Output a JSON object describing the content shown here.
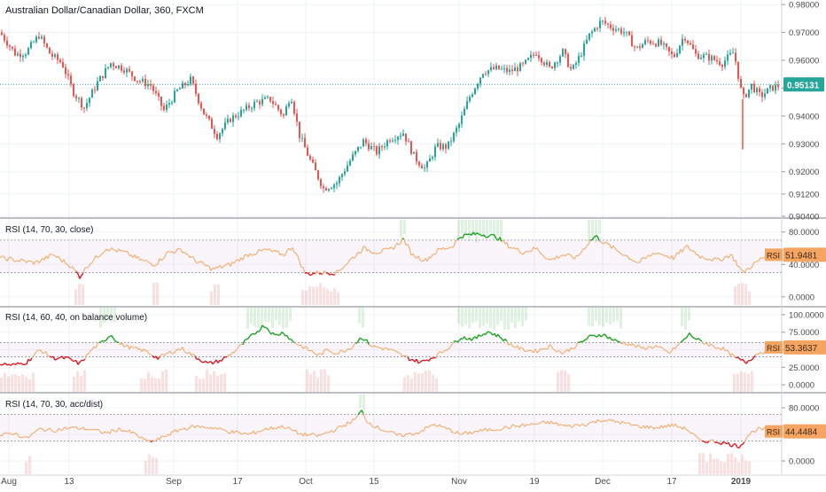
{
  "chart_data": [
    {
      "type": "candlestick",
      "title": "Australian Dollar/Canadian Dollar, 360, FXCM",
      "ylim": [
        0.904,
        0.981
      ],
      "yticks": [
        "0.98000",
        "0.97000",
        "0.96000",
        "0.95000",
        "0.94000",
        "0.93000",
        "0.92000",
        "0.91200",
        "0.90400"
      ],
      "yticks_values": [
        0.98,
        0.97,
        0.96,
        0.95,
        0.94,
        0.93,
        0.92,
        0.912,
        0.904
      ],
      "last_value": "0.95131",
      "last_value_num": 0.95131,
      "anchors": [
        [
          0,
          0.97
        ],
        [
          18,
          0.962
        ],
        [
          30,
          0.963
        ],
        [
          44,
          0.969
        ],
        [
          57,
          0.962
        ],
        [
          70,
          0.959
        ],
        [
          82,
          0.949
        ],
        [
          95,
          0.943
        ],
        [
          110,
          0.952
        ],
        [
          125,
          0.959
        ],
        [
          140,
          0.957
        ],
        [
          155,
          0.953
        ],
        [
          170,
          0.951
        ],
        [
          185,
          0.942
        ],
        [
          200,
          0.949
        ],
        [
          215,
          0.953
        ],
        [
          230,
          0.941
        ],
        [
          245,
          0.933
        ],
        [
          260,
          0.939
        ],
        [
          275,
          0.942
        ],
        [
          290,
          0.945
        ],
        [
          305,
          0.946
        ],
        [
          320,
          0.94
        ],
        [
          328,
          0.948
        ],
        [
          338,
          0.933
        ],
        [
          350,
          0.924
        ],
        [
          365,
          0.914
        ],
        [
          380,
          0.916
        ],
        [
          395,
          0.924
        ],
        [
          410,
          0.931
        ],
        [
          425,
          0.927
        ],
        [
          440,
          0.932
        ],
        [
          455,
          0.934
        ],
        [
          468,
          0.925
        ],
        [
          480,
          0.921
        ],
        [
          492,
          0.929
        ],
        [
          505,
          0.929
        ],
        [
          518,
          0.937
        ],
        [
          530,
          0.947
        ],
        [
          545,
          0.956
        ],
        [
          560,
          0.957
        ],
        [
          575,
          0.956
        ],
        [
          590,
          0.958
        ],
        [
          605,
          0.963
        ],
        [
          620,
          0.957
        ],
        [
          635,
          0.963
        ],
        [
          645,
          0.956
        ],
        [
          655,
          0.962
        ],
        [
          665,
          0.969
        ],
        [
          678,
          0.974
        ],
        [
          690,
          0.972
        ],
        [
          705,
          0.97
        ],
        [
          718,
          0.964
        ],
        [
          730,
          0.967
        ],
        [
          745,
          0.966
        ],
        [
          760,
          0.961
        ],
        [
          772,
          0.969
        ],
        [
          785,
          0.962
        ],
        [
          800,
          0.961
        ],
        [
          815,
          0.959
        ],
        [
          828,
          0.963
        ],
        [
          838,
          0.946
        ],
        [
          848,
          0.951
        ],
        [
          858,
          0.947
        ],
        [
          870,
          0.95
        ],
        [
          880,
          0.951
        ]
      ],
      "spike": {
        "x": 838,
        "low": 0.928
      }
    },
    {
      "type": "line",
      "title": "RSI (14, 70, 30, close)",
      "ylim": [
        -10,
        95
      ],
      "yticks": [
        "80.0000",
        "40.0000",
        "0.0000"
      ],
      "yticks_values": [
        80,
        40,
        0
      ],
      "upper": 70,
      "lower": 30,
      "tag": "RSI",
      "last_value": "51.9481",
      "last_value_num": 51.9481,
      "anchors": [
        [
          0,
          48
        ],
        [
          20,
          45
        ],
        [
          40,
          42
        ],
        [
          60,
          52
        ],
        [
          80,
          38
        ],
        [
          90,
          25
        ],
        [
          100,
          40
        ],
        [
          120,
          60
        ],
        [
          140,
          55
        ],
        [
          160,
          45
        ],
        [
          175,
          40
        ],
        [
          190,
          55
        ],
        [
          205,
          58
        ],
        [
          220,
          45
        ],
        [
          240,
          34
        ],
        [
          260,
          40
        ],
        [
          280,
          52
        ],
        [
          300,
          58
        ],
        [
          320,
          52
        ],
        [
          330,
          62
        ],
        [
          345,
          28
        ],
        [
          360,
          30
        ],
        [
          380,
          30
        ],
        [
          395,
          45
        ],
        [
          410,
          60
        ],
        [
          425,
          55
        ],
        [
          440,
          58
        ],
        [
          450,
          66
        ],
        [
          455,
          72
        ],
        [
          465,
          52
        ],
        [
          480,
          45
        ],
        [
          495,
          58
        ],
        [
          510,
          62
        ],
        [
          520,
          75
        ],
        [
          540,
          78
        ],
        [
          560,
          74
        ],
        [
          575,
          62
        ],
        [
          590,
          55
        ],
        [
          605,
          60
        ],
        [
          620,
          45
        ],
        [
          635,
          52
        ],
        [
          650,
          48
        ],
        [
          665,
          68
        ],
        [
          672,
          75
        ],
        [
          680,
          68
        ],
        [
          700,
          55
        ],
        [
          720,
          42
        ],
        [
          740,
          55
        ],
        [
          760,
          48
        ],
        [
          775,
          62
        ],
        [
          790,
          50
        ],
        [
          810,
          45
        ],
        [
          825,
          52
        ],
        [
          838,
          30
        ],
        [
          848,
          38
        ],
        [
          860,
          48
        ],
        [
          875,
          52
        ],
        [
          880,
          52
        ]
      ],
      "shade_down": [
        [
          84,
          96
        ],
        [
          172,
          178
        ],
        [
          237,
          246
        ],
        [
          340,
          382
        ],
        [
          828,
          848
        ]
      ],
      "shade_up": [
        [
          451,
          456
        ],
        [
          516,
          565
        ],
        [
          663,
          678
        ]
      ]
    },
    {
      "type": "line",
      "title": "RSI (14, 60, 40, on balance volume)",
      "ylim": [
        -10,
        110
      ],
      "yticks": [
        "100.0000",
        "75.0000",
        "50.0000",
        "25.0000",
        "0.0000"
      ],
      "yticks_values": [
        100,
        75,
        50,
        25,
        0
      ],
      "upper": 60,
      "lower": 40,
      "tag": "RSI",
      "last_value": "53.3637",
      "last_value_num": 53.3637,
      "anchors": [
        [
          0,
          30
        ],
        [
          15,
          28
        ],
        [
          30,
          32
        ],
        [
          45,
          50
        ],
        [
          60,
          38
        ],
        [
          75,
          38
        ],
        [
          90,
          30
        ],
        [
          105,
          52
        ],
        [
          115,
          60
        ],
        [
          125,
          72
        ],
        [
          135,
          58
        ],
        [
          150,
          52
        ],
        [
          165,
          48
        ],
        [
          178,
          38
        ],
        [
          190,
          45
        ],
        [
          205,
          52
        ],
        [
          220,
          40
        ],
        [
          235,
          30
        ],
        [
          250,
          35
        ],
        [
          265,
          48
        ],
        [
          280,
          65
        ],
        [
          298,
          85
        ],
        [
          310,
          70
        ],
        [
          320,
          75
        ],
        [
          330,
          62
        ],
        [
          345,
          52
        ],
        [
          360,
          42
        ],
        [
          370,
          50
        ],
        [
          380,
          45
        ],
        [
          395,
          52
        ],
        [
          408,
          68
        ],
        [
          420,
          55
        ],
        [
          440,
          50
        ],
        [
          460,
          38
        ],
        [
          475,
          32
        ],
        [
          490,
          40
        ],
        [
          505,
          52
        ],
        [
          520,
          68
        ],
        [
          535,
          65
        ],
        [
          550,
          76
        ],
        [
          565,
          68
        ],
        [
          575,
          58
        ],
        [
          590,
          50
        ],
        [
          605,
          48
        ],
        [
          620,
          55
        ],
        [
          635,
          45
        ],
        [
          645,
          52
        ],
        [
          665,
          68
        ],
        [
          680,
          72
        ],
        [
          695,
          62
        ],
        [
          710,
          58
        ],
        [
          725,
          52
        ],
        [
          740,
          55
        ],
        [
          755,
          45
        ],
        [
          770,
          62
        ],
        [
          778,
          72
        ],
        [
          790,
          62
        ],
        [
          805,
          55
        ],
        [
          815,
          52
        ],
        [
          830,
          38
        ],
        [
          842,
          32
        ],
        [
          855,
          45
        ],
        [
          868,
          50
        ],
        [
          880,
          53
        ]
      ],
      "shade_down": [
        [
          0,
          38
        ],
        [
          82,
          98
        ],
        [
          158,
          190
        ],
        [
          220,
          255
        ],
        [
          345,
          372
        ],
        [
          455,
          495
        ],
        [
          628,
          642
        ],
        [
          827,
          850
        ]
      ],
      "shade_up": [
        [
          112,
          132
        ],
        [
          278,
          330
        ],
        [
          404,
          410
        ],
        [
          516,
          595
        ],
        [
          663,
          700
        ],
        [
          768,
          780
        ]
      ]
    },
    {
      "type": "line",
      "title": "RSI (14, 70, 30, acc/dist)",
      "ylim": [
        -20,
        100
      ],
      "yticks": [
        "80.0000",
        "40.0000",
        "0.0000"
      ],
      "yticks_values": [
        80,
        40,
        0
      ],
      "upper": 70,
      "lower": 30,
      "tag": "RSI",
      "last_value": "44.4484",
      "last_value_num": 44.4484,
      "anchors": [
        [
          0,
          38
        ],
        [
          15,
          42
        ],
        [
          30,
          34
        ],
        [
          45,
          48
        ],
        [
          60,
          46
        ],
        [
          80,
          50
        ],
        [
          100,
          48
        ],
        [
          120,
          42
        ],
        [
          135,
          48
        ],
        [
          150,
          42
        ],
        [
          165,
          30
        ],
        [
          175,
          30
        ],
        [
          190,
          40
        ],
        [
          205,
          48
        ],
        [
          220,
          52
        ],
        [
          240,
          50
        ],
        [
          260,
          44
        ],
        [
          280,
          40
        ],
        [
          300,
          48
        ],
        [
          320,
          52
        ],
        [
          340,
          40
        ],
        [
          360,
          38
        ],
        [
          380,
          48
        ],
        [
          400,
          62
        ],
        [
          408,
          75
        ],
        [
          415,
          58
        ],
        [
          430,
          48
        ],
        [
          450,
          38
        ],
        [
          470,
          42
        ],
        [
          490,
          55
        ],
        [
          505,
          48
        ],
        [
          520,
          40
        ],
        [
          540,
          45
        ],
        [
          560,
          48
        ],
        [
          580,
          52
        ],
        [
          600,
          55
        ],
        [
          620,
          58
        ],
        [
          640,
          52
        ],
        [
          660,
          55
        ],
        [
          680,
          62
        ],
        [
          700,
          58
        ],
        [
          720,
          52
        ],
        [
          740,
          50
        ],
        [
          760,
          54
        ],
        [
          775,
          48
        ],
        [
          790,
          30
        ],
        [
          805,
          30
        ],
        [
          820,
          26
        ],
        [
          835,
          22
        ],
        [
          845,
          40
        ],
        [
          855,
          48
        ],
        [
          870,
          46
        ],
        [
          880,
          44
        ]
      ],
      "shade_down": [
        [
          28,
          34
        ],
        [
          163,
          178
        ],
        [
          788,
          848
        ]
      ],
      "shade_up": [
        [
          405,
          412
        ]
      ]
    }
  ],
  "x_axis": {
    "labels": [
      "Aug",
      "13",
      "Sep",
      "17",
      "Oct",
      "15",
      "Nov",
      "19",
      "Dec",
      "17",
      "2019"
    ],
    "label_x": [
      10,
      78,
      196,
      268,
      345,
      422,
      518,
      603,
      680,
      758,
      836
    ]
  }
}
